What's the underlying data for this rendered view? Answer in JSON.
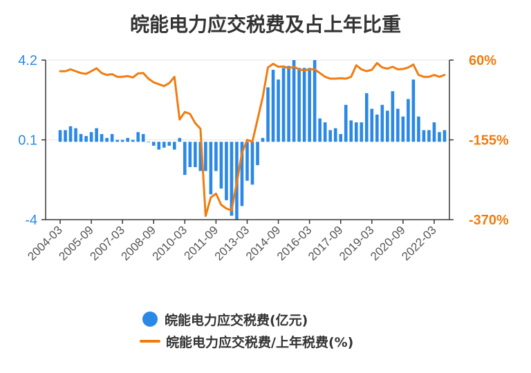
{
  "chart_data": {
    "type": "bar+line",
    "title": "皖能电力应交税费及占上年比重",
    "left_axis": {
      "ticks": [
        "4.2",
        "0.1",
        "-4"
      ],
      "ylim": [
        -4,
        4.2
      ],
      "color": "#2b88e6"
    },
    "right_axis": {
      "ticks": [
        "60%",
        "-155%",
        "-370%"
      ],
      "ylim": [
        -370,
        60
      ],
      "color": "#f07c0f"
    },
    "x_tick_labels": [
      "2004-03",
      "2005-09",
      "2007-03",
      "2008-09",
      "2010-03",
      "2011-09",
      "2013-03",
      "2014-09",
      "2016-03",
      "2017-09",
      "2019-03",
      "2020-09",
      "2022-03"
    ],
    "series": [
      {
        "name": "皖能电力应交税费(亿元)",
        "type": "bar",
        "color": "#2b88e6",
        "values": [
          0.6,
          0.6,
          0.8,
          0.7,
          0.4,
          0.3,
          0.5,
          0.7,
          0.4,
          0.2,
          0.4,
          0.1,
          0.1,
          0.2,
          0.1,
          0.5,
          0.4,
          0.0,
          -0.2,
          -0.4,
          -0.3,
          -0.2,
          -0.4,
          0.2,
          -1.7,
          -1.3,
          -1.3,
          -1.5,
          -1.5,
          -2.7,
          -1.5,
          -2.4,
          -3.0,
          -3.8,
          -4.0,
          -3.3,
          -2.0,
          -2.2,
          -1.2,
          0.2,
          2.8,
          3.7,
          3.2,
          3.8,
          3.9,
          4.2,
          3.8,
          3.8,
          3.8,
          4.2,
          1.2,
          1.0,
          0.6,
          0.7,
          0.4,
          1.9,
          1.1,
          1.0,
          1.0,
          2.5,
          1.7,
          1.4,
          1.9,
          1.6,
          2.6,
          1.7,
          1.3,
          2.2,
          3.2,
          1.3,
          0.6,
          0.6,
          1.0,
          0.5,
          0.6
        ]
      },
      {
        "name": "皖能电力应交税费/上年税费(%)",
        "type": "line",
        "color": "#f07c0f",
        "values": [
          30,
          30,
          35,
          30,
          25,
          23,
          30,
          38,
          25,
          20,
          22,
          15,
          15,
          17,
          13,
          24,
          25,
          10,
          0,
          -5,
          -10,
          -2,
          15,
          -100,
          -80,
          -85,
          -110,
          -125,
          -360,
          -310,
          -300,
          -330,
          -340,
          -345,
          -270,
          -190,
          -155,
          -160,
          -100,
          -40,
          40,
          50,
          42,
          43,
          38,
          42,
          35,
          32,
          35,
          35,
          25,
          15,
          10,
          10,
          11,
          10,
          15,
          46,
          35,
          30,
          34,
          52,
          40,
          37,
          42,
          35,
          36,
          40,
          48,
          20,
          15,
          15,
          20,
          15,
          20
        ]
      }
    ],
    "legend_position": "bottom"
  },
  "legend": {
    "bar_label": "皖能电力应交税费(亿元)",
    "line_label": "皖能电力应交税费/上年税费(%)"
  }
}
